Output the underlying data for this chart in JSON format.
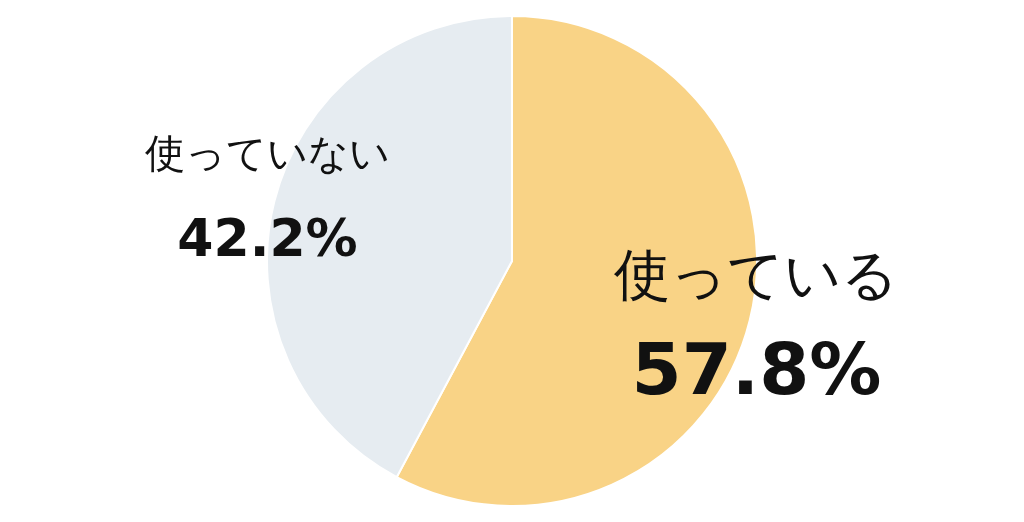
{
  "chart_data": {
    "type": "pie",
    "categories": [
      "使っている",
      "使っていない"
    ],
    "values": [
      57.8,
      42.2
    ],
    "colors": [
      "#f9d386",
      "#e6ecf1"
    ],
    "value_labels": [
      "57.8%",
      "42.2%"
    ]
  }
}
